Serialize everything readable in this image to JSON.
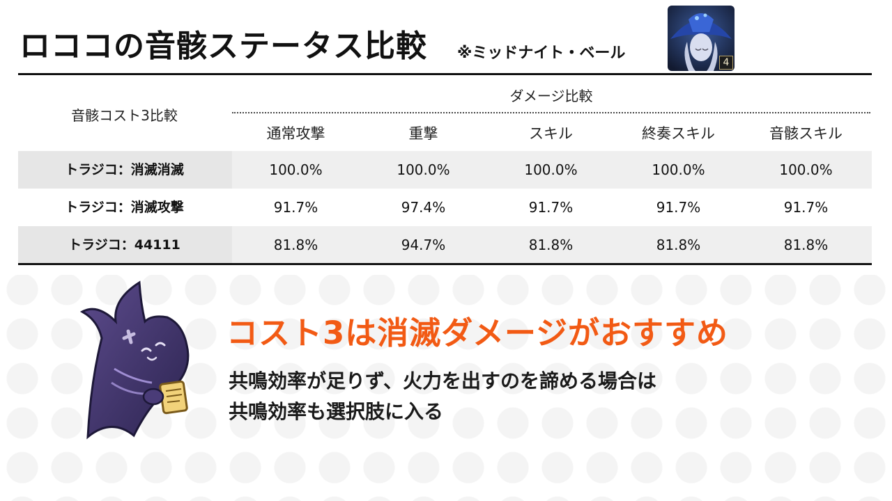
{
  "header": {
    "title": "ロココの音骸ステータス比較",
    "subtitle": "※ミッドナイト・ベール",
    "echo_cost_badge": "4"
  },
  "table": {
    "row_header_label": "音骸コスト3比較",
    "group_label": "ダメージ比較",
    "columns": [
      "通常攻撃",
      "重撃",
      "スキル",
      "終奏スキル",
      "音骸スキル"
    ],
    "rows": [
      {
        "label": "トラジコ：消滅消滅",
        "values": [
          "100.0%",
          "100.0%",
          "100.0%",
          "100.0%",
          "100.0%"
        ]
      },
      {
        "label": "トラジコ：消滅攻撃",
        "values": [
          "91.7%",
          "97.4%",
          "91.7%",
          "91.7%",
          "91.7%"
        ]
      },
      {
        "label": "トラジコ：44111",
        "values": [
          "81.8%",
          "94.7%",
          "81.8%",
          "81.8%",
          "81.8%"
        ]
      }
    ]
  },
  "callout": {
    "headline": "コスト3は消滅ダメージがおすすめ",
    "line1": "共鳴効率が足りず、火力を出すのを諦める場合は",
    "line2": "共鳴効率も選択肢に入る"
  },
  "colors": {
    "headline": "#f25a14",
    "row_shade": "#efefef",
    "rule": "#111111"
  },
  "icons": {
    "portrait": "echo-portrait-icon",
    "mascot": "mascot-illustration"
  }
}
